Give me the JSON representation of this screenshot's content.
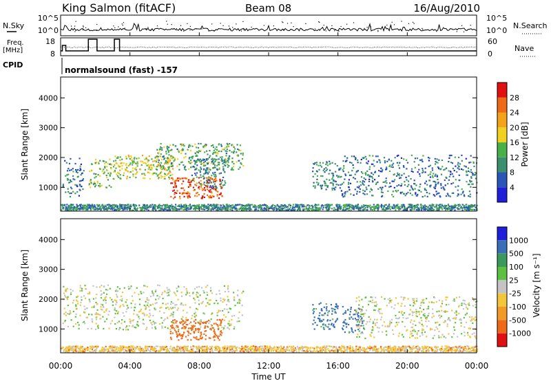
{
  "header": {
    "station": "King Salmon (fitACF)",
    "beam": "Beam 08",
    "date": "16/Aug/2010"
  },
  "top_panels": {
    "nsky_label": "N.Sky",
    "nsky_ticks": [
      "10^5",
      "10^0"
    ],
    "nsearch_label": "N.Search",
    "nsearch_ticks": [
      "10^5",
      "10^0"
    ],
    "freq_label": "Freq.",
    "freq_unit": "[MHz]",
    "freq_ticks": [
      "18",
      "8"
    ],
    "nave_label": "Nave",
    "nave_ticks": [
      "60",
      "0"
    ],
    "cpid_label": "CPID",
    "cpid_text": "normalsound (fast) -157"
  },
  "time_axis": {
    "label": "Time UT",
    "ticks": [
      "00:00",
      "04:00",
      "08:00",
      "12:00",
      "16:00",
      "20:00",
      "00:00"
    ]
  },
  "colors": {
    "power": [
      "#1f1fd9",
      "#2a56b8",
      "#3a8f6e",
      "#49b049",
      "#f0d020",
      "#f4a21a",
      "#ef6a18",
      "#e01010"
    ],
    "velocity": [
      "#1f1fd9",
      "#3a6fb8",
      "#3a9a5a",
      "#5cc042",
      "#c4c4c4",
      "#f2c53a",
      "#f29a28",
      "#ef6a18",
      "#e01010"
    ]
  },
  "chart_data": [
    {
      "type": "heatmap",
      "panel": "power",
      "ylabel": "Slant Range [km]",
      "yticks": [
        1000,
        2000,
        3000,
        4000
      ],
      "ylim": [
        200,
        4700
      ],
      "xlim_hours": [
        0,
        24
      ],
      "xticks": [
        "00:00",
        "04:00",
        "08:00",
        "12:00",
        "16:00",
        "20:00",
        "00:00"
      ],
      "colorbar_label": "Power [dB]",
      "colorbar_ticks": [
        "4",
        "8",
        "12",
        "16",
        "20",
        "24",
        "28"
      ],
      "regions": [
        {
          "t0": 0.1,
          "t1": 1.3,
          "r0": 700,
          "r1": 2000,
          "level": 0.25
        },
        {
          "t0": 1.6,
          "t1": 2.9,
          "r0": 1000,
          "r1": 2000,
          "level": 0.45
        },
        {
          "t0": 3.0,
          "t1": 6.5,
          "r0": 1300,
          "r1": 2100,
          "level": 0.55
        },
        {
          "t0": 5.5,
          "t1": 10.5,
          "r0": 1600,
          "r1": 2500,
          "level": 0.4
        },
        {
          "t0": 6.3,
          "t1": 9.3,
          "r0": 650,
          "r1": 1350,
          "level": 0.85
        },
        {
          "t0": 7.5,
          "t1": 9.5,
          "r0": 1000,
          "r1": 2000,
          "level": 0.3
        },
        {
          "t0": 14.5,
          "t1": 16.0,
          "r0": 900,
          "r1": 1900,
          "level": 0.3
        },
        {
          "t0": 16.0,
          "t1": 24.0,
          "r0": 700,
          "r1": 2100,
          "level": 0.25
        },
        {
          "t0": 0.0,
          "t1": 24.0,
          "r0": 250,
          "r1": 450,
          "level": 0.3
        }
      ]
    },
    {
      "type": "heatmap",
      "panel": "velocity",
      "ylabel": "Slant Range [km]",
      "yticks": [
        1000,
        2000,
        3000,
        4000
      ],
      "ylim": [
        200,
        4700
      ],
      "xlim_hours": [
        0,
        24
      ],
      "xticks": [
        "00:00",
        "04:00",
        "08:00",
        "12:00",
        "16:00",
        "20:00",
        "00:00"
      ],
      "colorbar_label": "Velocity [m s⁻¹]",
      "colorbar_ticks": [
        "1000",
        "500",
        "100",
        "25",
        "-25",
        "-100",
        "-500",
        "-1000"
      ],
      "regions": [
        {
          "t0": 0.1,
          "t1": 10.5,
          "r0": 1000,
          "r1": 2500,
          "velocity": 0
        },
        {
          "t0": 6.3,
          "t1": 9.3,
          "r0": 650,
          "r1": 1350,
          "velocity": -300
        },
        {
          "t0": 14.5,
          "t1": 16.0,
          "r0": 1000,
          "r1": 1900,
          "velocity": 150
        },
        {
          "t0": 16.2,
          "t1": 17.5,
          "r0": 900,
          "r1": 1800,
          "velocity": 150
        },
        {
          "t0": 17.0,
          "t1": 24.0,
          "r0": 700,
          "r1": 2100,
          "velocity": 0
        },
        {
          "t0": 0.0,
          "t1": 24.0,
          "r0": 250,
          "r1": 450,
          "velocity": -60
        }
      ]
    }
  ]
}
